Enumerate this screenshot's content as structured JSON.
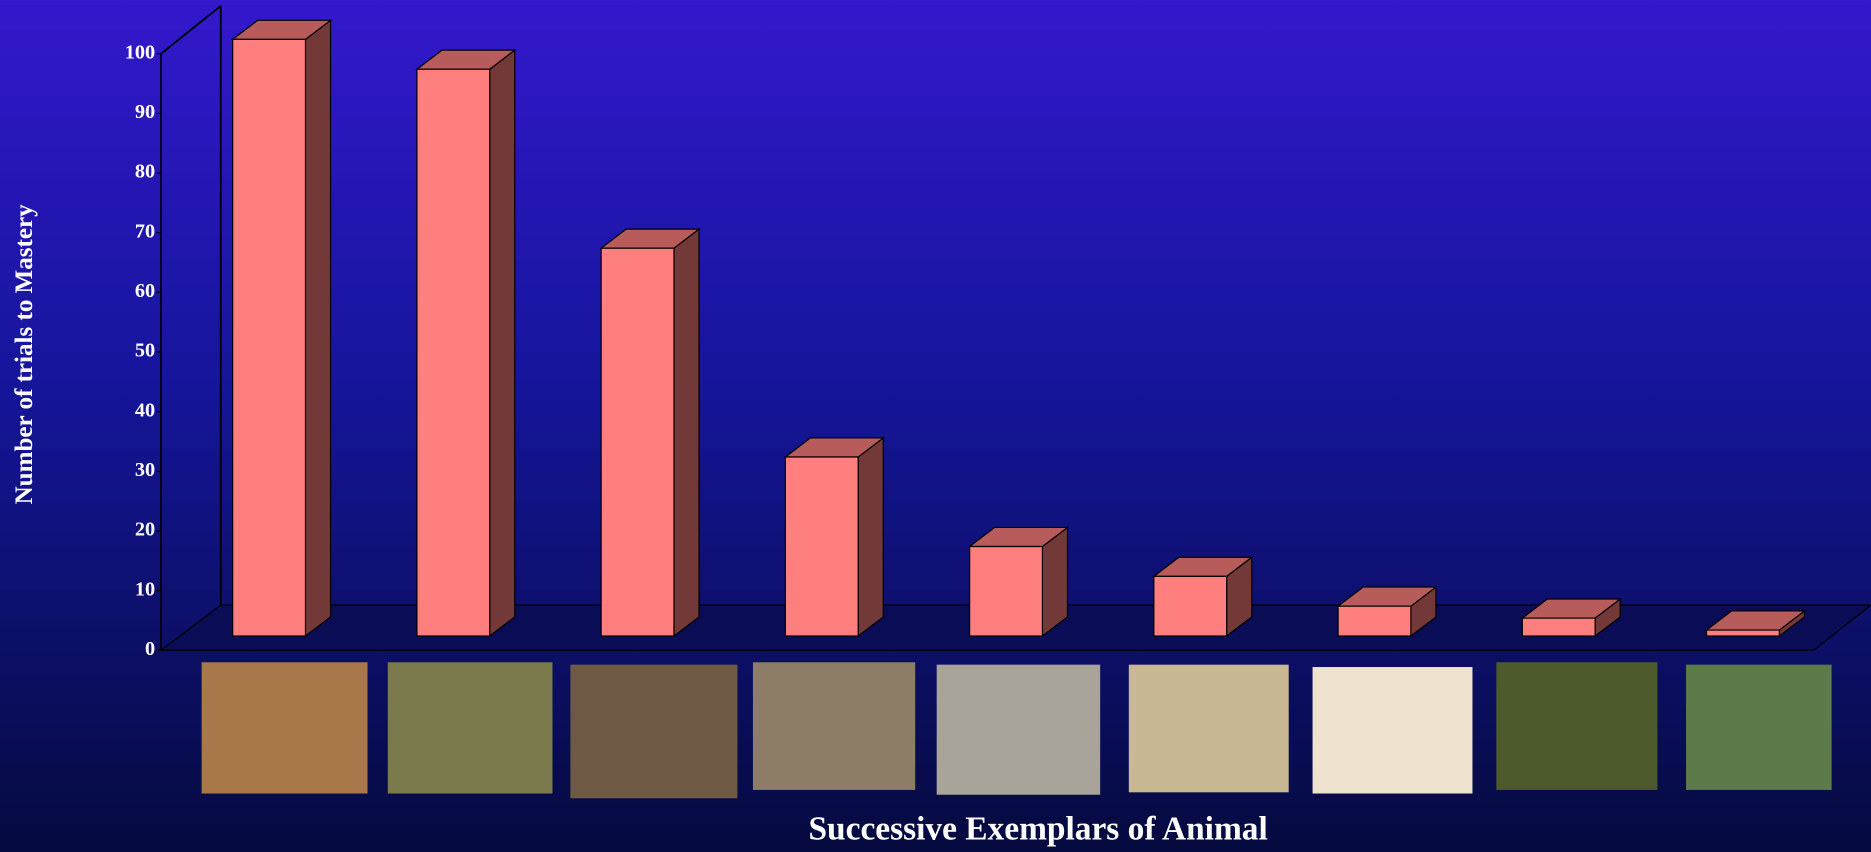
{
  "chart_data": {
    "type": "bar3d",
    "x_label": "Successive Exemplars of Animal",
    "y_label": "Number of trials to Mastery",
    "categories": [
      null,
      null,
      null,
      null,
      null,
      null,
      null,
      null,
      null
    ],
    "values": [
      100,
      95,
      65,
      30,
      15,
      10,
      5,
      3,
      1
    ],
    "color": "#ff7f7f",
    "ylim": [
      0,
      100
    ],
    "yticks": [
      0,
      10,
      20,
      30,
      40,
      50,
      60,
      70,
      80,
      90,
      100
    ]
  }
}
